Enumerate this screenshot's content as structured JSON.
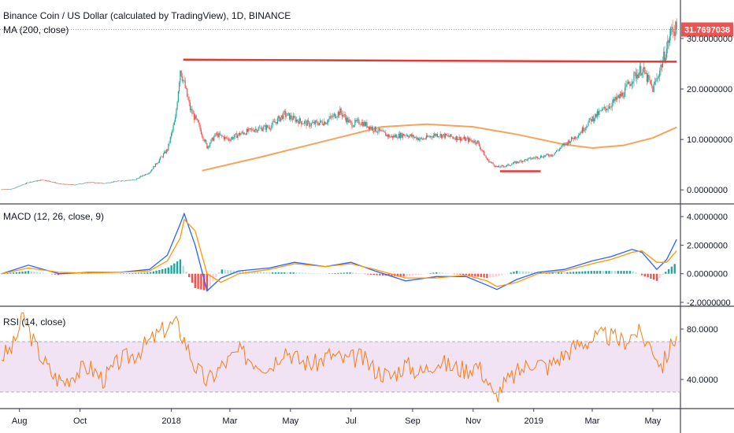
{
  "header": {
    "title": "Binance Coin / US Dollar (calculated by TradingView), 1D, BINANCE",
    "ma_label": "MA (200, close)",
    "macd_label": "MACD (12, 26, close, 9)",
    "rsi_label": "RSI (14, close)"
  },
  "last_price_tag": "31.7697038",
  "colors": {
    "up": "#26a69a",
    "down": "#ef5350",
    "ma": "#f7a35c",
    "macd": "#2962ff",
    "signal": "#ff9800",
    "rsi": "#f57f17",
    "rsi_band": "#e1bee7",
    "trendline": "#e53935",
    "tag_bg": "#ef5350"
  },
  "chart_data": [
    {
      "type": "line",
      "name": "price",
      "title": "Binance Coin / US Dollar (calculated by TradingView), 1D, BINANCE",
      "y_ticks": [
        "30.0000000",
        "20.0000000",
        "10.0000000",
        "0.0000000"
      ],
      "y_tick_values": [
        30,
        20,
        10,
        0
      ],
      "ylim": [
        -2,
        37
      ],
      "x": [
        "2017-07-14",
        "2017-07-25",
        "2017-08-10",
        "2017-08-25",
        "2017-09-10",
        "2017-09-25",
        "2017-10-10",
        "2017-10-25",
        "2017-11-10",
        "2017-11-25",
        "2017-12-10",
        "2017-12-20",
        "2017-12-28",
        "2018-01-05",
        "2018-01-10",
        "2018-01-14",
        "2018-01-20",
        "2018-01-28",
        "2018-02-06",
        "2018-02-15",
        "2018-02-28",
        "2018-03-10",
        "2018-03-25",
        "2018-04-10",
        "2018-04-25",
        "2018-05-05",
        "2018-05-20",
        "2018-06-05",
        "2018-06-20",
        "2018-07-01",
        "2018-07-10",
        "2018-07-25",
        "2018-08-10",
        "2018-08-25",
        "2018-09-10",
        "2018-09-25",
        "2018-10-10",
        "2018-10-25",
        "2018-11-05",
        "2018-11-15",
        "2018-11-25",
        "2018-12-05",
        "2018-12-15",
        "2018-12-25",
        "2019-01-05",
        "2019-01-20",
        "2019-02-01",
        "2019-02-15",
        "2019-02-28",
        "2019-03-10",
        "2019-03-20",
        "2019-04-01",
        "2019-04-10",
        "2019-04-20",
        "2019-05-01",
        "2019-05-05",
        "2019-05-10",
        "2019-05-15",
        "2019-05-20",
        "2019-05-25"
      ],
      "price": [
        0.1,
        0.2,
        1.5,
        2.0,
        1.2,
        1.0,
        1.5,
        1.3,
        1.8,
        2.0,
        3.5,
        6.0,
        8.0,
        14.0,
        24.0,
        21.0,
        16.0,
        13.0,
        8.5,
        11.0,
        10.0,
        11.0,
        12.0,
        12.5,
        15.0,
        14.0,
        13.0,
        13.5,
        15.5,
        13.0,
        13.5,
        12.0,
        10.5,
        11.0,
        10.0,
        11.0,
        10.5,
        10.0,
        9.5,
        6.0,
        4.5,
        4.8,
        5.5,
        6.0,
        6.5,
        7.0,
        9.0,
        11.0,
        14.0,
        15.5,
        17.0,
        19.0,
        22.0,
        24.0,
        20.0,
        22.0,
        25.0,
        28.0,
        32.0,
        31.77
      ],
      "ma_x": [
        "2018-02-01",
        "2018-04-01",
        "2018-06-01",
        "2018-08-01",
        "2018-09-15",
        "2018-11-01",
        "2018-12-15",
        "2019-02-01",
        "2019-03-01",
        "2019-04-01",
        "2019-05-01",
        "2019-05-25"
      ],
      "ma": [
        3.8,
        6.5,
        9.5,
        12.5,
        13.0,
        12.5,
        11.0,
        9.0,
        8.3,
        8.8,
        10.3,
        12.4
      ],
      "annotations": [
        {
          "kind": "resistance",
          "x": [
            "2018-01-13",
            "2019-05-25"
          ],
          "y": [
            25.8,
            25.4
          ]
        },
        {
          "kind": "support",
          "x": [
            "2018-11-28",
            "2019-01-08"
          ],
          "y": [
            3.7,
            3.7
          ]
        }
      ]
    },
    {
      "type": "line",
      "name": "macd",
      "y_ticks": [
        "4.0000000",
        "2.0000000",
        "0.0000000",
        "-2.0000000"
      ],
      "y_tick_values": [
        4,
        2,
        0,
        -2
      ],
      "ylim": [
        -2,
        4.5
      ],
      "x": [
        "2017-07-14",
        "2017-08-10",
        "2017-09-10",
        "2017-10-10",
        "2017-11-10",
        "2017-12-10",
        "2017-12-28",
        "2018-01-10",
        "2018-01-14",
        "2018-01-25",
        "2018-02-06",
        "2018-02-20",
        "2018-03-10",
        "2018-04-10",
        "2018-05-05",
        "2018-06-05",
        "2018-07-01",
        "2018-07-25",
        "2018-08-25",
        "2018-09-25",
        "2018-10-25",
        "2018-11-15",
        "2018-11-25",
        "2018-12-15",
        "2019-01-05",
        "2019-02-01",
        "2019-03-01",
        "2019-03-20",
        "2019-04-10",
        "2019-04-20",
        "2019-05-05",
        "2019-05-15",
        "2019-05-25"
      ],
      "macd": [
        0.0,
        0.6,
        0.0,
        0.1,
        0.1,
        0.3,
        1.3,
        3.5,
        4.2,
        2.0,
        -1.2,
        -0.3,
        0.2,
        0.4,
        0.8,
        0.5,
        0.8,
        0.2,
        -0.5,
        -0.2,
        -0.2,
        -0.8,
        -1.1,
        -0.4,
        0.1,
        0.3,
        0.9,
        1.2,
        1.7,
        1.5,
        0.3,
        1.0,
        2.4
      ],
      "signal": [
        0.0,
        0.4,
        0.1,
        0.05,
        0.1,
        0.2,
        0.9,
        2.5,
        3.8,
        3.0,
        0.0,
        -0.6,
        0.0,
        0.3,
        0.7,
        0.5,
        0.7,
        0.3,
        -0.3,
        -0.3,
        -0.1,
        -0.5,
        -0.9,
        -0.6,
        0.0,
        0.2,
        0.7,
        1.0,
        1.5,
        1.6,
        0.8,
        0.8,
        1.6
      ]
    },
    {
      "type": "line",
      "name": "rsi",
      "y_ticks": [
        "80.0000",
        "40.0000"
      ],
      "y_tick_values": [
        80,
        40
      ],
      "band": [
        30,
        70
      ],
      "ylim": [
        20,
        95
      ],
      "x": [
        "2017-07-14",
        "2017-07-25",
        "2017-08-05",
        "2017-08-15",
        "2017-08-25",
        "2017-09-05",
        "2017-09-15",
        "2017-09-25",
        "2017-10-10",
        "2017-10-25",
        "2017-11-10",
        "2017-11-25",
        "2017-12-10",
        "2017-12-25",
        "2018-01-05",
        "2018-01-14",
        "2018-01-25",
        "2018-02-06",
        "2018-02-20",
        "2018-03-10",
        "2018-03-25",
        "2018-04-10",
        "2018-04-25",
        "2018-05-10",
        "2018-05-25",
        "2018-06-10",
        "2018-06-25",
        "2018-07-10",
        "2018-07-25",
        "2018-08-10",
        "2018-08-25",
        "2018-09-10",
        "2018-09-25",
        "2018-10-10",
        "2018-10-25",
        "2018-11-05",
        "2018-11-15",
        "2018-11-22",
        "2018-12-01",
        "2018-12-15",
        "2019-01-01",
        "2019-01-15",
        "2019-02-01",
        "2019-02-15",
        "2019-03-01",
        "2019-03-15",
        "2019-04-01",
        "2019-04-15",
        "2019-05-01",
        "2019-05-10",
        "2019-05-20",
        "2019-05-25"
      ],
      "rsi": [
        58,
        65,
        90,
        70,
        55,
        42,
        38,
        45,
        50,
        40,
        55,
        60,
        70,
        80,
        85,
        72,
        50,
        38,
        50,
        62,
        55,
        50,
        65,
        55,
        52,
        60,
        55,
        58,
        48,
        42,
        52,
        45,
        55,
        50,
        48,
        52,
        40,
        25,
        35,
        45,
        55,
        50,
        60,
        68,
        72,
        75,
        70,
        78,
        65,
        50,
        68,
        76
      ]
    }
  ],
  "time_ticks": [
    "Aug",
    "Oct",
    "2018",
    "Mar",
    "May",
    "Jul",
    "Sep",
    "Nov",
    "2019",
    "Mar",
    "May"
  ]
}
